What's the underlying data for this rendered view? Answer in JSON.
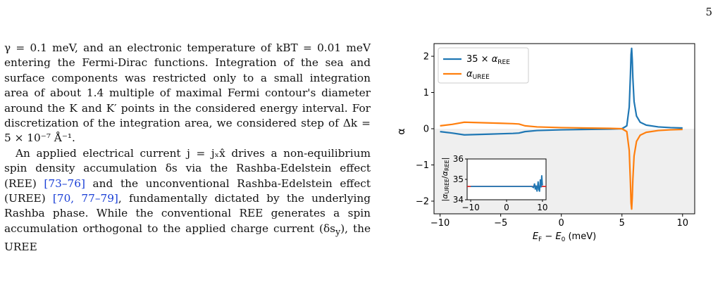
{
  "page_number": "5",
  "paragraph1": [
    {
      "t": "γ = 0.1 meV, and an electronic temperature of k",
      "i": true
    },
    {
      "t": "B"
    },
    {
      "t": "T = 0.01 meV entering the Fermi-Dirac functions. Integration of the sea and surface components was restricted only to a small integration area of about 1.4 multiple of maximal Fermi contour's diameter around the K and K′ points in the considered energy interval. For discretization of the integration area, we considered step of Δk = 5 × 10⁻⁷ Å⁻¹."
    }
  ],
  "paragraph1_text": "γ = 0.1 meV, and an electronic temperature of kBT = 0.01 meV entering the Fermi-Dirac functions. Integration of the sea and surface components was restricted only to a small integration area of about 1.4 multiple of maximal Fermi contour's diameter around the K and K′ points in the considered energy interval. For discretization of the integration area, we considered step of Δk = 5 × 10⁻⁷ Å⁻¹.",
  "paragraph2": {
    "a": "An applied electrical current j = jₓx̂ drives a non-equilibrium spin density accumulation δs via the Rashba-Edelstein effect (REE) ",
    "cite1": "[73–76]",
    "b": " and the unconventional Rashba-Edelstein effect (UREE) ",
    "cite2": "[70, 77–79]",
    "c": ", fundamentally dictated by the underlying Rashba phase. While the conventional REE generates a spin accumulation orthogonal to the applied charge current (δs",
    "sub": "y",
    "d": "), the UREE"
  },
  "chart_data": [
    {
      "type": "line",
      "xlabel": "E_F − E_0 (meV)",
      "ylabel": "α",
      "xlim": [
        -10.5,
        11
      ],
      "ylim": [
        -2.35,
        2.35
      ],
      "x_ticks": [
        -10,
        -5,
        0,
        5,
        10
      ],
      "x_tick_labels": [
        "−10",
        "−5",
        "0",
        "5",
        "10"
      ],
      "y_ticks": [
        -2,
        -1,
        0,
        1,
        2
      ],
      "y_tick_labels": [
        "−2",
        "−1",
        "0",
        "1",
        "2"
      ],
      "shaded_region": "negative y (light gray)",
      "legend_position": "top-left",
      "series": [
        {
          "name": "35 × α_REE",
          "color": "#1f77b4",
          "x": [
            -10,
            -9,
            -8,
            -7,
            -6,
            -5,
            -4,
            -3.5,
            -3,
            -2,
            -1,
            0,
            1,
            2,
            3,
            4,
            5,
            5.4,
            5.6,
            5.7,
            5.75,
            5.8,
            5.85,
            5.9,
            6.0,
            6.2,
            6.5,
            7,
            8,
            9,
            10
          ],
          "y": [
            -0.08,
            -0.12,
            -0.17,
            -0.16,
            -0.15,
            -0.14,
            -0.13,
            -0.12,
            -0.08,
            -0.05,
            -0.04,
            -0.03,
            -0.025,
            -0.02,
            -0.015,
            -0.01,
            0.0,
            0.08,
            0.6,
            1.5,
            2.05,
            2.22,
            1.9,
            1.4,
            0.75,
            0.35,
            0.18,
            0.1,
            0.05,
            0.03,
            0.02
          ]
        },
        {
          "name": "α_UREE",
          "color": "#ff7f0e",
          "x": [
            -10,
            -9,
            -8,
            -7,
            -6,
            -5,
            -4,
            -3.5,
            -3,
            -2,
            -1,
            0,
            1,
            2,
            3,
            4,
            5,
            5.4,
            5.6,
            5.7,
            5.75,
            5.8,
            5.85,
            5.9,
            6.0,
            6.2,
            6.5,
            7,
            8,
            9,
            10
          ],
          "y": [
            0.08,
            0.12,
            0.18,
            0.17,
            0.16,
            0.15,
            0.14,
            0.13,
            0.08,
            0.05,
            0.04,
            0.03,
            0.025,
            0.02,
            0.015,
            0.01,
            0.0,
            -0.08,
            -0.6,
            -1.5,
            -2.05,
            -2.22,
            -1.9,
            -1.4,
            -0.75,
            -0.35,
            -0.18,
            -0.1,
            -0.05,
            -0.03,
            -0.02
          ]
        }
      ]
    },
    {
      "type": "line",
      "inset": true,
      "ylabel": "|α_UREE/α_REE|",
      "xlim": [
        -11,
        11
      ],
      "ylim": [
        34,
        36
      ],
      "x_ticks": [
        -10,
        0,
        10
      ],
      "x_tick_labels": [
        "−10",
        "0",
        "10"
      ],
      "y_ticks": [
        34,
        35,
        36
      ],
      "y_tick_labels": [
        "34",
        "35",
        "36"
      ],
      "reference_line": {
        "y": 34.65,
        "color": "#d62728"
      },
      "series": [
        {
          "name": "ratio",
          "color": "#1f77b4",
          "x": [
            -10,
            -5,
            0,
            5,
            7,
            7.5,
            7.8,
            8.0,
            8.2,
            8.5,
            8.8,
            9.0,
            9.2,
            9.4,
            9.6,
            9.8,
            10
          ],
          "y": [
            34.65,
            34.65,
            34.65,
            34.65,
            34.65,
            34.6,
            34.8,
            34.5,
            34.7,
            34.4,
            34.9,
            34.5,
            34.4,
            35.0,
            34.6,
            35.2,
            34.7
          ]
        }
      ]
    }
  ]
}
